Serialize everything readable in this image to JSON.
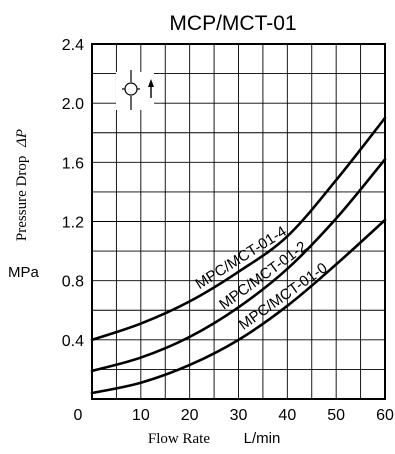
{
  "chart_data": {
    "type": "line",
    "title": "MCP/MCT-01",
    "xlabel": "Flow Rate",
    "xunit": "L/min",
    "ylabel": "Pressure Drop",
    "ylabel_symbol": "ΔP",
    "yunit": "MPa",
    "xlim": [
      0,
      60
    ],
    "ylim": [
      0,
      2.4
    ],
    "x_ticks": [
      "0",
      "10",
      "20",
      "30",
      "40",
      "50",
      "60"
    ],
    "y_ticks": [
      "0.4",
      "0.8",
      "1.2",
      "1.6",
      "2.0",
      "2.4"
    ],
    "grid": true,
    "series": [
      {
        "name": "MPC/MCT-01-4",
        "x": [
          0,
          10,
          20,
          30,
          40,
          50,
          60
        ],
        "y": [
          0.4,
          0.51,
          0.66,
          0.86,
          1.1,
          1.48,
          1.9
        ]
      },
      {
        "name": "MPC/MCT-01-2",
        "x": [
          0,
          10,
          20,
          30,
          40,
          50,
          60
        ],
        "y": [
          0.19,
          0.28,
          0.42,
          0.62,
          0.88,
          1.22,
          1.62
        ]
      },
      {
        "name": "MPC/MCT-01-0",
        "x": [
          0,
          10,
          20,
          30,
          40,
          50,
          60
        ],
        "y": [
          0.04,
          0.11,
          0.23,
          0.4,
          0.63,
          0.91,
          1.21
        ]
      }
    ],
    "symbol": "check-valve-icon"
  }
}
